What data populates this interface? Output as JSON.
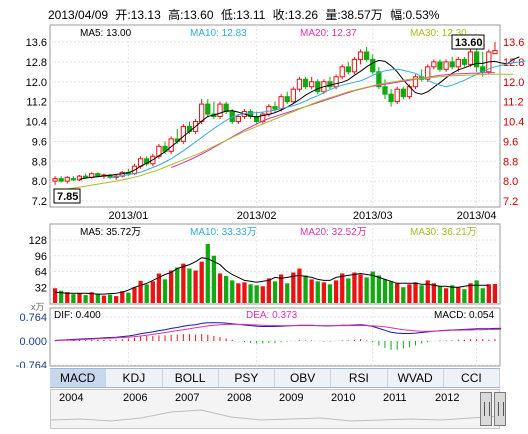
{
  "header": {
    "date": "2013/04/09",
    "open": "开:13.13",
    "high": "高:13.60",
    "low": "低:13.11",
    "close": "收:13.26",
    "volume": "量:38.57万",
    "change": "幅:0.53%"
  },
  "ma_legend": {
    "ma5": "MA5: 13.00",
    "ma10": "MA10: 12.83",
    "ma20": "MA20: 12.37",
    "ma30": "MA30: 12.30"
  },
  "vol_legend": {
    "ma5": "MA5: 35.72万",
    "ma10": "MA10: 33.33万",
    "ma20": "MA20: 32.52万",
    "ma30": "MA30: 36.21万"
  },
  "macd_legend": {
    "dif": "DIF: 0.400",
    "dea": "DEA: 0.373",
    "macd": "MACD: 0.054"
  },
  "price_axis": [
    "13.6",
    "12.8",
    "12.0",
    "11.2",
    "10.4",
    "9.6",
    "8.8",
    "8.0",
    "7.2"
  ],
  "vol_axis": [
    "128",
    "96",
    "64",
    "32"
  ],
  "vol_unit": "x万",
  "macd_axis": [
    "0.764",
    "0.000",
    "-0.764"
  ],
  "date_labels": [
    "2013/01",
    "2013/02",
    "2013/03",
    "2013/04"
  ],
  "callouts": {
    "high": "13.60",
    "low": "7.85"
  },
  "tabs": [
    "MACD",
    "KDJ",
    "BOLL",
    "PSY",
    "OBV",
    "RSI",
    "WVAD",
    "CCI"
  ],
  "years": [
    "2004",
    "2006",
    "2007",
    "2008",
    "2009",
    "2010",
    "2011",
    "2012"
  ],
  "colors": {
    "up": "#ee1111",
    "down": "#11aa11",
    "ma5": "#000000",
    "ma10": "#33aadd",
    "ma20": "#dd33aa",
    "ma30": "#aabb22"
  },
  "chart_data": {
    "type": "candlestick",
    "price_range": [
      7.2,
      13.6
    ],
    "volume_range": [
      0,
      128
    ],
    "macd_range": [
      -0.764,
      0.764
    ],
    "candles": [
      {
        "o": 8.0,
        "h": 8.2,
        "l": 7.85,
        "c": 8.1,
        "v": 30
      },
      {
        "o": 8.1,
        "h": 8.2,
        "l": 7.95,
        "c": 8.0,
        "v": 25
      },
      {
        "o": 8.0,
        "h": 8.2,
        "l": 7.9,
        "c": 8.15,
        "v": 22
      },
      {
        "o": 8.1,
        "h": 8.2,
        "l": 8.0,
        "c": 8.05,
        "v": 18
      },
      {
        "o": 8.05,
        "h": 8.25,
        "l": 8.0,
        "c": 8.2,
        "v": 20
      },
      {
        "o": 8.2,
        "h": 8.3,
        "l": 8.1,
        "c": 8.15,
        "v": 16
      },
      {
        "o": 8.15,
        "h": 8.35,
        "l": 8.1,
        "c": 8.3,
        "v": 22
      },
      {
        "o": 8.3,
        "h": 8.35,
        "l": 8.15,
        "c": 8.2,
        "v": 19
      },
      {
        "o": 8.2,
        "h": 8.3,
        "l": 8.1,
        "c": 8.25,
        "v": 15
      },
      {
        "o": 8.25,
        "h": 8.3,
        "l": 8.1,
        "c": 8.15,
        "v": 17
      },
      {
        "o": 8.15,
        "h": 8.25,
        "l": 8.05,
        "c": 8.2,
        "v": 14
      },
      {
        "o": 8.2,
        "h": 8.4,
        "l": 8.15,
        "c": 8.35,
        "v": 24
      },
      {
        "o": 8.35,
        "h": 8.5,
        "l": 8.2,
        "c": 8.3,
        "v": 21
      },
      {
        "o": 8.3,
        "h": 8.7,
        "l": 8.25,
        "c": 8.6,
        "v": 32
      },
      {
        "o": 8.6,
        "h": 9.0,
        "l": 8.5,
        "c": 8.9,
        "v": 45
      },
      {
        "o": 8.9,
        "h": 9.0,
        "l": 8.6,
        "c": 8.7,
        "v": 38
      },
      {
        "o": 8.7,
        "h": 9.1,
        "l": 8.6,
        "c": 9.0,
        "v": 44
      },
      {
        "o": 9.0,
        "h": 9.5,
        "l": 8.9,
        "c": 9.4,
        "v": 60
      },
      {
        "o": 9.4,
        "h": 9.6,
        "l": 9.1,
        "c": 9.2,
        "v": 48
      },
      {
        "o": 9.2,
        "h": 9.8,
        "l": 9.1,
        "c": 9.7,
        "v": 66
      },
      {
        "o": 9.7,
        "h": 10.1,
        "l": 9.5,
        "c": 9.6,
        "v": 72
      },
      {
        "o": 9.6,
        "h": 10.3,
        "l": 9.5,
        "c": 10.2,
        "v": 80
      },
      {
        "o": 10.2,
        "h": 10.4,
        "l": 9.9,
        "c": 10.0,
        "v": 70
      },
      {
        "o": 10.0,
        "h": 10.5,
        "l": 9.9,
        "c": 10.4,
        "v": 66
      },
      {
        "o": 10.4,
        "h": 11.3,
        "l": 10.3,
        "c": 11.1,
        "v": 84
      },
      {
        "o": 11.1,
        "h": 11.3,
        "l": 10.6,
        "c": 10.7,
        "v": 120
      },
      {
        "o": 10.7,
        "h": 11.2,
        "l": 10.5,
        "c": 10.6,
        "v": 96
      },
      {
        "o": 10.6,
        "h": 11.2,
        "l": 10.5,
        "c": 11.1,
        "v": 60
      },
      {
        "o": 11.1,
        "h": 11.2,
        "l": 10.7,
        "c": 10.8,
        "v": 55
      },
      {
        "o": 10.8,
        "h": 10.9,
        "l": 10.3,
        "c": 10.4,
        "v": 46
      },
      {
        "o": 10.4,
        "h": 10.7,
        "l": 10.3,
        "c": 10.6,
        "v": 40
      },
      {
        "o": 10.6,
        "h": 10.9,
        "l": 10.5,
        "c": 10.8,
        "v": 42
      },
      {
        "o": 10.8,
        "h": 10.9,
        "l": 10.5,
        "c": 10.6,
        "v": 38
      },
      {
        "o": 10.6,
        "h": 10.8,
        "l": 10.3,
        "c": 10.4,
        "v": 36
      },
      {
        "o": 10.4,
        "h": 10.8,
        "l": 10.3,
        "c": 10.7,
        "v": 34
      },
      {
        "o": 10.7,
        "h": 11.1,
        "l": 10.6,
        "c": 11.0,
        "v": 50
      },
      {
        "o": 11.0,
        "h": 11.2,
        "l": 10.8,
        "c": 10.9,
        "v": 44
      },
      {
        "o": 10.9,
        "h": 11.5,
        "l": 10.8,
        "c": 11.4,
        "v": 58
      },
      {
        "o": 11.4,
        "h": 11.6,
        "l": 11.1,
        "c": 11.2,
        "v": 40
      },
      {
        "o": 11.2,
        "h": 11.8,
        "l": 11.1,
        "c": 11.7,
        "v": 62
      },
      {
        "o": 11.7,
        "h": 12.2,
        "l": 11.6,
        "c": 12.1,
        "v": 70
      },
      {
        "o": 12.1,
        "h": 12.2,
        "l": 11.7,
        "c": 11.8,
        "v": 56
      },
      {
        "o": 11.8,
        "h": 12.2,
        "l": 11.7,
        "c": 12.0,
        "v": 48
      },
      {
        "o": 12.0,
        "h": 12.1,
        "l": 11.5,
        "c": 11.6,
        "v": 44
      },
      {
        "o": 11.6,
        "h": 12.1,
        "l": 11.5,
        "c": 12.0,
        "v": 42
      },
      {
        "o": 12.0,
        "h": 12.2,
        "l": 11.7,
        "c": 11.8,
        "v": 38
      },
      {
        "o": 11.8,
        "h": 12.3,
        "l": 11.7,
        "c": 12.2,
        "v": 46
      },
      {
        "o": 12.2,
        "h": 12.7,
        "l": 12.1,
        "c": 12.6,
        "v": 60
      },
      {
        "o": 12.6,
        "h": 12.8,
        "l": 12.3,
        "c": 12.4,
        "v": 50
      },
      {
        "o": 12.4,
        "h": 13.0,
        "l": 12.3,
        "c": 12.9,
        "v": 62
      },
      {
        "o": 12.9,
        "h": 13.3,
        "l": 12.7,
        "c": 13.2,
        "v": 58
      },
      {
        "o": 13.2,
        "h": 13.4,
        "l": 12.8,
        "c": 12.9,
        "v": 52
      },
      {
        "o": 12.9,
        "h": 13.1,
        "l": 12.3,
        "c": 12.4,
        "v": 64
      },
      {
        "o": 12.4,
        "h": 12.6,
        "l": 11.7,
        "c": 11.8,
        "v": 56
      },
      {
        "o": 11.8,
        "h": 12.1,
        "l": 11.3,
        "c": 11.5,
        "v": 48
      },
      {
        "o": 11.5,
        "h": 11.7,
        "l": 11.0,
        "c": 11.2,
        "v": 44
      },
      {
        "o": 11.2,
        "h": 11.8,
        "l": 11.1,
        "c": 11.7,
        "v": 40
      },
      {
        "o": 11.7,
        "h": 11.8,
        "l": 11.3,
        "c": 11.4,
        "v": 32
      },
      {
        "o": 11.4,
        "h": 11.9,
        "l": 11.3,
        "c": 11.8,
        "v": 38
      },
      {
        "o": 11.8,
        "h": 12.3,
        "l": 11.7,
        "c": 12.2,
        "v": 42
      },
      {
        "o": 12.2,
        "h": 12.5,
        "l": 12.0,
        "c": 12.1,
        "v": 36
      },
      {
        "o": 12.1,
        "h": 12.7,
        "l": 12.0,
        "c": 12.6,
        "v": 46
      },
      {
        "o": 12.6,
        "h": 12.9,
        "l": 12.5,
        "c": 12.8,
        "v": 40
      },
      {
        "o": 12.8,
        "h": 12.9,
        "l": 12.4,
        "c": 12.5,
        "v": 34
      },
      {
        "o": 12.5,
        "h": 12.9,
        "l": 12.4,
        "c": 12.8,
        "v": 30
      },
      {
        "o": 12.8,
        "h": 13.0,
        "l": 12.5,
        "c": 12.6,
        "v": 36
      },
      {
        "o": 12.6,
        "h": 13.0,
        "l": 12.4,
        "c": 12.9,
        "v": 32
      },
      {
        "o": 12.9,
        "h": 13.0,
        "l": 12.6,
        "c": 12.7,
        "v": 28
      },
      {
        "o": 12.7,
        "h": 13.3,
        "l": 12.6,
        "c": 13.2,
        "v": 40
      },
      {
        "o": 13.2,
        "h": 13.6,
        "l": 12.4,
        "c": 12.6,
        "v": 46
      },
      {
        "o": 12.6,
        "h": 13.2,
        "l": 12.2,
        "c": 12.4,
        "v": 30
      },
      {
        "o": 12.4,
        "h": 13.3,
        "l": 12.3,
        "c": 13.2,
        "v": 38
      },
      {
        "o": 13.13,
        "h": 13.6,
        "l": 13.11,
        "c": 13.26,
        "v": 38.57
      }
    ],
    "ma": {
      "ma5": {
        "start": 4,
        "values": [
          8.08,
          8.12,
          8.16,
          8.18,
          8.21,
          8.23,
          8.27,
          8.3,
          8.34,
          8.44,
          8.6,
          8.72,
          8.86,
          9.02,
          9.18,
          9.38,
          9.58,
          9.8,
          10.0,
          10.2,
          10.42,
          10.6,
          10.66,
          10.74,
          10.82,
          10.84,
          10.78,
          10.7,
          10.62,
          10.58,
          10.64,
          10.68,
          10.76,
          10.86,
          10.98,
          11.12,
          11.28,
          11.46,
          11.6,
          11.72,
          11.8,
          11.86,
          11.92,
          11.98,
          12.08,
          12.26,
          12.42,
          12.6,
          12.76,
          12.86,
          12.82,
          12.64,
          12.4,
          12.08,
          11.8,
          11.56,
          11.5,
          11.6,
          11.78,
          11.96,
          12.16,
          12.34,
          12.48,
          12.56,
          12.66,
          12.74,
          12.74,
          12.8,
          12.82,
          12.76,
          12.72,
          12.9,
          13.0
        ]
      },
      "ma10": {
        "start": 9,
        "values": [
          8.14,
          8.18,
          8.22,
          8.26,
          8.31,
          8.36,
          8.45,
          8.55,
          8.65,
          8.77,
          8.9,
          9.06,
          9.22,
          9.4,
          9.58,
          9.76,
          9.94,
          10.12,
          10.28,
          10.44,
          10.58,
          10.66,
          10.72,
          10.74,
          10.76,
          10.78,
          10.82,
          10.86,
          10.92,
          10.98,
          11.04,
          11.12,
          11.22,
          11.34,
          11.44,
          11.56,
          11.68,
          11.78,
          11.86,
          11.92,
          11.98,
          12.04,
          12.14,
          12.26,
          12.36,
          12.44,
          12.48,
          12.5,
          12.46,
          12.4,
          12.34,
          12.2,
          12.06,
          11.94,
          11.86,
          11.8,
          11.86,
          11.96,
          12.06,
          12.18,
          12.3,
          12.4,
          12.52,
          12.6,
          12.66,
          12.72,
          12.76,
          12.8,
          12.83
        ]
      },
      "ma20": {
        "start": 19,
        "values": [
          8.55,
          8.64,
          8.74,
          8.85,
          8.97,
          9.09,
          9.22,
          9.36,
          9.5,
          9.64,
          9.78,
          9.92,
          10.06,
          10.18,
          10.3,
          10.42,
          10.52,
          10.6,
          10.68,
          10.76,
          10.84,
          10.92,
          11.0,
          11.08,
          11.16,
          11.24,
          11.32,
          11.4,
          11.48,
          11.56,
          11.64,
          11.7,
          11.76,
          11.82,
          11.86,
          11.9,
          11.94,
          11.98,
          12.02,
          12.06,
          12.1,
          12.14,
          12.18,
          12.22,
          12.26,
          12.28,
          12.3,
          12.32,
          12.33,
          12.34,
          12.35,
          12.36,
          12.36,
          12.37
        ]
      },
      "ma30": {
        "start": 0,
        "values": [
          7.6,
          7.64,
          7.68,
          7.72,
          7.76,
          7.8,
          7.84,
          7.88,
          7.92,
          7.96,
          8.0,
          8.05,
          8.1,
          8.16,
          8.22,
          8.3,
          8.38,
          8.46,
          8.56,
          8.66,
          8.76,
          8.86,
          8.96,
          9.06,
          9.16,
          9.28,
          9.4,
          9.52,
          9.64,
          9.76,
          9.88,
          10.0,
          10.1,
          10.2,
          10.3,
          10.4,
          10.5,
          10.6,
          10.7,
          10.8,
          10.9,
          11.0,
          11.1,
          11.2,
          11.28,
          11.36,
          11.44,
          11.52,
          11.6,
          11.66,
          11.72,
          11.78,
          11.84,
          11.9,
          11.94,
          11.98,
          12.02,
          12.06,
          12.1,
          12.12,
          12.14,
          12.16,
          12.18,
          12.2,
          12.22,
          12.24,
          12.25,
          12.26,
          12.27,
          12.28,
          12.29,
          12.3,
          12.3,
          12.3,
          12.3,
          12.3
        ]
      }
    },
    "vol_ma": {
      "ma5": [
        22,
        21,
        20,
        20,
        20,
        20,
        19,
        18,
        18,
        19,
        20,
        22,
        26,
        32,
        36,
        40,
        46,
        52,
        58,
        62,
        70,
        74,
        78,
        84,
        92,
        90,
        84,
        78,
        66,
        58,
        52,
        46,
        44,
        42,
        44,
        46,
        52,
        50,
        52,
        54,
        56,
        54,
        52,
        48,
        46,
        46,
        52,
        54,
        56,
        58,
        60,
        58,
        56,
        52,
        48,
        44,
        40,
        40,
        40,
        40,
        38,
        38,
        36,
        34,
        34,
        32,
        32,
        34,
        36,
        36,
        36,
        36
      ]
    },
    "macd": {
      "dif": [
        0.02,
        0.03,
        0.04,
        0.05,
        0.06,
        0.07,
        0.08,
        0.09,
        0.1,
        0.11,
        0.12,
        0.14,
        0.16,
        0.19,
        0.23,
        0.26,
        0.29,
        0.33,
        0.36,
        0.4,
        0.43,
        0.47,
        0.5,
        0.52,
        0.56,
        0.58,
        0.58,
        0.58,
        0.57,
        0.55,
        0.53,
        0.51,
        0.49,
        0.47,
        0.46,
        0.46,
        0.46,
        0.47,
        0.48,
        0.49,
        0.5,
        0.5,
        0.5,
        0.49,
        0.48,
        0.48,
        0.49,
        0.5,
        0.5,
        0.51,
        0.52,
        0.5,
        0.46,
        0.4,
        0.34,
        0.28,
        0.25,
        0.24,
        0.24,
        0.25,
        0.27,
        0.29,
        0.31,
        0.33,
        0.34,
        0.35,
        0.36,
        0.37,
        0.38,
        0.39,
        0.39,
        0.39,
        0.4,
        0.4
      ],
      "dea": [
        0.01,
        0.02,
        0.03,
        0.03,
        0.04,
        0.05,
        0.06,
        0.07,
        0.08,
        0.09,
        0.1,
        0.11,
        0.12,
        0.14,
        0.16,
        0.18,
        0.21,
        0.24,
        0.27,
        0.3,
        0.33,
        0.36,
        0.39,
        0.42,
        0.45,
        0.48,
        0.5,
        0.52,
        0.53,
        0.53,
        0.53,
        0.53,
        0.52,
        0.51,
        0.5,
        0.49,
        0.49,
        0.49,
        0.49,
        0.49,
        0.49,
        0.49,
        0.49,
        0.49,
        0.49,
        0.49,
        0.49,
        0.49,
        0.49,
        0.49,
        0.49,
        0.49,
        0.48,
        0.47,
        0.45,
        0.42,
        0.39,
        0.36,
        0.34,
        0.32,
        0.31,
        0.31,
        0.31,
        0.32,
        0.33,
        0.34,
        0.34,
        0.35,
        0.35,
        0.36,
        0.36,
        0.37,
        0.37,
        0.373
      ]
    },
    "time_axis": [
      "2013/01",
      "2013/02",
      "2013/03",
      "2013/04"
    ]
  }
}
